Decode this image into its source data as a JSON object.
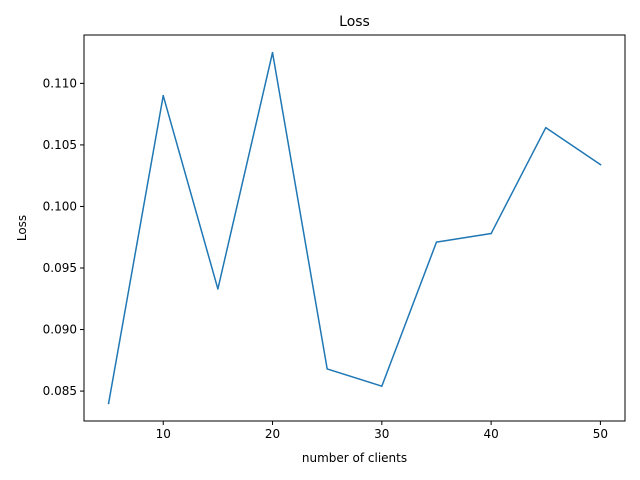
{
  "chart_data": {
    "type": "line",
    "title": "Loss",
    "xlabel": "number of clients",
    "ylabel": "Loss",
    "x": [
      5,
      10,
      15,
      20,
      25,
      30,
      35,
      40,
      45,
      50
    ],
    "series": [
      {
        "values": [
          0.084,
          0.109,
          0.0933,
          0.1125,
          0.0868,
          0.0854,
          0.0971,
          0.0978,
          0.1064,
          0.1034
        ],
        "color": "#1f77b4"
      }
    ],
    "xlim": [
      2.75,
      52.25
    ],
    "ylim": [
      0.08257,
      0.11393
    ],
    "xticks": [
      10,
      20,
      30,
      40,
      50
    ],
    "xtick_labels": [
      "10",
      "20",
      "30",
      "40",
      "50"
    ],
    "yticks": [
      0.085,
      0.09,
      0.095,
      0.1,
      0.105,
      0.11
    ],
    "ytick_labels": [
      "0.085",
      "0.090",
      "0.095",
      "0.100",
      "0.105",
      "0.110"
    ],
    "grid": false,
    "legend": false
  }
}
